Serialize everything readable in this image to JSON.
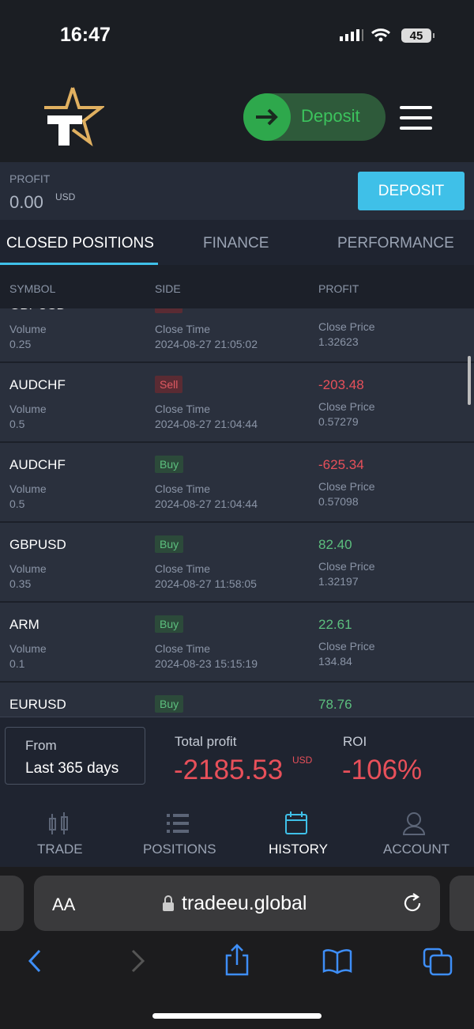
{
  "status_bar": {
    "time": "16:47",
    "battery": "45"
  },
  "header": {
    "deposit_pill": "Deposit"
  },
  "profit_bar": {
    "label": "PROFIT",
    "value": "0.00",
    "currency": "USD",
    "button": "DEPOSIT"
  },
  "tabs": [
    "CLOSED POSITIONS",
    "FINANCE",
    "PERFORMANCE"
  ],
  "table": {
    "columns": [
      "SYMBOL",
      "SIDE",
      "PROFIT"
    ],
    "labels": {
      "volume": "Volume",
      "close_time": "Close Time",
      "close_price": "Close Price"
    },
    "rows": [
      {
        "symbol": "GBPUSD",
        "side": "Sell",
        "volume": "0.25",
        "close_time": "2024-08-27 21:05:02",
        "close_price": "1.32623"
      },
      {
        "symbol": "AUDCHF",
        "side": "Sell",
        "profit": "-203.48",
        "volume": "0.5",
        "close_time": "2024-08-27 21:04:44",
        "close_price": "0.57279"
      },
      {
        "symbol": "AUDCHF",
        "side": "Buy",
        "profit": "-625.34",
        "volume": "0.5",
        "close_time": "2024-08-27 21:04:44",
        "close_price": "0.57098"
      },
      {
        "symbol": "GBPUSD",
        "side": "Buy",
        "profit": "82.40",
        "volume": "0.35",
        "close_time": "2024-08-27 11:58:05",
        "close_price": "1.32197"
      },
      {
        "symbol": "ARM",
        "side": "Buy",
        "profit": "22.61",
        "volume": "0.1",
        "close_time": "2024-08-23 15:15:19",
        "close_price": "134.84"
      },
      {
        "symbol": "EURUSD",
        "side": "Buy",
        "profit": "78.76"
      }
    ]
  },
  "summary": {
    "from_label": "From",
    "from_value": "Last 365 days",
    "total_label": "Total profit",
    "total_value": "-2185.53",
    "total_currency": "USD",
    "roi_label": "ROI",
    "roi_value": "-106%"
  },
  "nav": [
    "TRADE",
    "POSITIONS",
    "HISTORY",
    "ACCOUNT"
  ],
  "browser": {
    "text_size": "AA",
    "url": "tradeeu.global"
  }
}
